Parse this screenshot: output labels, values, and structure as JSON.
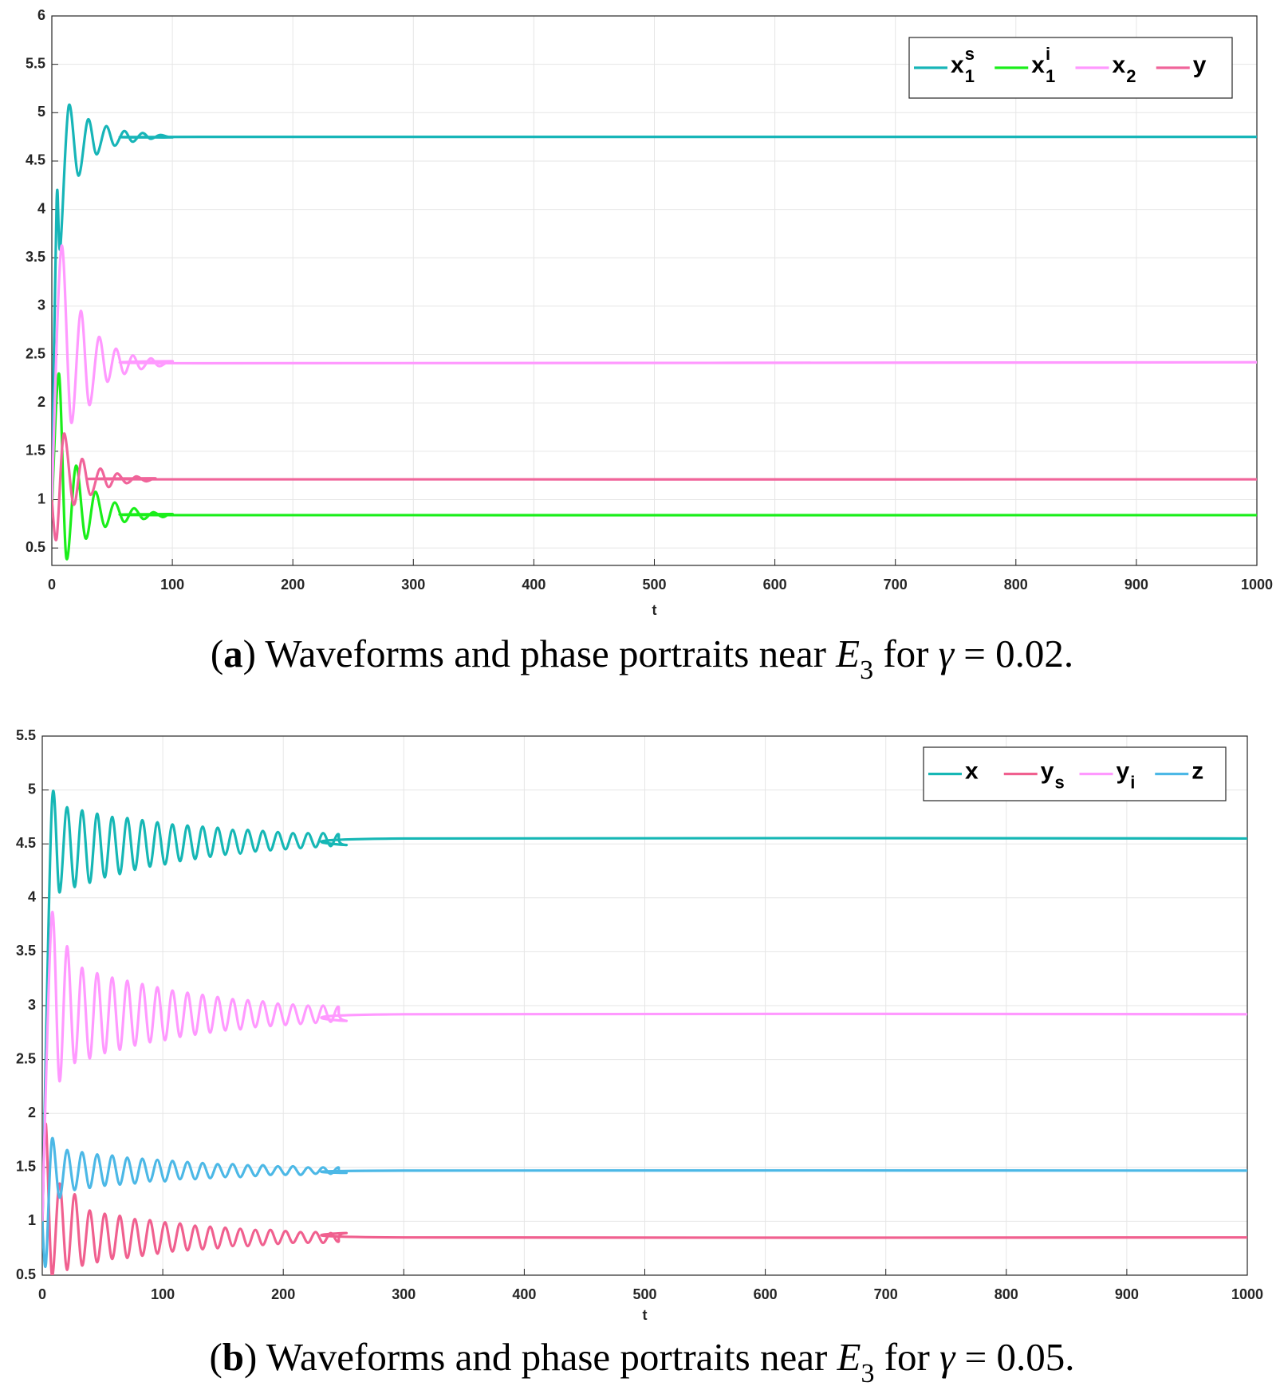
{
  "chart_data": [
    {
      "type": "line",
      "xlabel": "t",
      "caption": [
        "(",
        "a",
        ") Waveforms and phase portraits near ",
        "E",
        "3",
        " for ",
        "γ",
        " = 0.02."
      ],
      "caption_styles": [
        "normal",
        "bold",
        "normal",
        "italic",
        "sub",
        "normal",
        "italic",
        "normal"
      ],
      "xlim": [
        0,
        1000
      ],
      "xticks": [
        0,
        100,
        200,
        300,
        400,
        500,
        600,
        700,
        800,
        900,
        1000
      ],
      "ylim": [
        0.32,
        6
      ],
      "yticks": [
        0.5,
        1,
        1.5,
        2,
        2.5,
        3,
        3.5,
        4,
        4.5,
        5,
        5.5,
        6
      ],
      "grid": true,
      "legend": "upper-right",
      "series": [
        {
          "name": "x",
          "sup": "s",
          "sub": "1",
          "color": "#17b5b8",
          "x": [
            0,
            4,
            7,
            14,
            22,
            30,
            37,
            45,
            52,
            60,
            67,
            75,
            82,
            90,
            100,
            130,
            1000
          ],
          "values": [
            1,
            4.1,
            3.6,
            5.07,
            4.35,
            4.93,
            4.57,
            4.86,
            4.66,
            4.81,
            4.7,
            4.79,
            4.73,
            4.77,
            4.745,
            4.75,
            4.75
          ]
        },
        {
          "name": "x",
          "sup": "i",
          "sub": "1",
          "color": "#1aee1a",
          "x": [
            0,
            6,
            12,
            20,
            28,
            36,
            44,
            52,
            60,
            68,
            76,
            84,
            92,
            100,
            130,
            1000
          ],
          "values": [
            0.9,
            2.3,
            0.4,
            1.35,
            0.6,
            1.08,
            0.72,
            0.97,
            0.77,
            0.91,
            0.8,
            0.87,
            0.82,
            0.85,
            0.84,
            0.84
          ]
        },
        {
          "name": "x",
          "sub": "2",
          "color": "#ff99ff",
          "x": [
            0,
            8,
            16,
            24,
            31,
            39,
            46,
            53,
            60,
            67,
            74,
            82,
            89,
            100,
            130,
            1000
          ],
          "values": [
            1,
            3.62,
            1.8,
            2.95,
            1.98,
            2.68,
            2.22,
            2.56,
            2.3,
            2.49,
            2.35,
            2.46,
            2.38,
            2.43,
            2.41,
            2.42
          ]
        },
        {
          "name": "y",
          "color": "#f0649a",
          "x": [
            0,
            4,
            10,
            18,
            25,
            32,
            40,
            47,
            54,
            62,
            70,
            78,
            86,
            100,
            1000
          ],
          "values": [
            1,
            0.6,
            1.68,
            0.95,
            1.42,
            1.05,
            1.32,
            1.13,
            1.27,
            1.17,
            1.24,
            1.19,
            1.22,
            1.21,
            1.21
          ]
        }
      ]
    },
    {
      "type": "line",
      "xlabel": "t",
      "caption": [
        "(",
        "b",
        ") Waveforms and phase portraits near ",
        "E",
        "3",
        " for ",
        "γ",
        " = 0.05."
      ],
      "caption_styles": [
        "normal",
        "bold",
        "normal",
        "italic",
        "sub",
        "normal",
        "italic",
        "normal"
      ],
      "xlim": [
        0,
        1000
      ],
      "xticks": [
        0,
        100,
        200,
        300,
        400,
        500,
        600,
        700,
        800,
        900,
        1000
      ],
      "ylim": [
        0.5,
        5.5
      ],
      "yticks": [
        0.5,
        1,
        1.5,
        2,
        2.5,
        3,
        3.5,
        4,
        4.5,
        5,
        5.5
      ],
      "grid": true,
      "legend": "upper-right",
      "series": [
        {
          "name": "x",
          "color": "#16b7b5",
          "x": [
            0,
            8,
            14.3,
            20.5,
            26.8,
            33,
            39.3,
            45.5,
            51.8,
            58,
            64.3,
            70.5,
            76.8,
            83,
            89.3,
            95.5,
            101.8,
            108,
            114.3,
            120.5,
            126.8,
            133,
            139.3,
            145.5,
            151.8,
            158,
            164.3,
            170.5,
            176.8,
            183,
            189.3,
            195.5,
            201.8,
            208,
            214.3,
            220.5,
            226.8,
            233,
            239.3,
            245.5,
            251.8,
            300,
            1000
          ],
          "values": [
            0.9,
            4.87,
            4.05,
            4.84,
            4.1,
            4.81,
            4.14,
            4.78,
            4.19,
            4.75,
            4.22,
            4.74,
            4.26,
            4.72,
            4.29,
            4.7,
            4.31,
            4.68,
            4.34,
            4.67,
            4.36,
            4.66,
            4.38,
            4.65,
            4.4,
            4.63,
            4.41,
            4.63,
            4.43,
            4.62,
            4.44,
            4.61,
            4.45,
            4.6,
            4.46,
            4.6,
            4.47,
            4.6,
            4.48,
            4.59,
            4.49,
            4.55,
            4.55
          ]
        },
        {
          "name": "y",
          "sub": "s",
          "color": "#f0608f",
          "x": [
            0,
            3,
            8,
            14.3,
            20.5,
            26.8,
            33,
            39.3,
            45.5,
            51.8,
            58,
            64.3,
            70.5,
            76.8,
            83,
            89.3,
            95.5,
            101.8,
            108,
            114.3,
            120.5,
            126.8,
            133,
            139.3,
            145.5,
            151.8,
            158,
            164.3,
            170.5,
            176.8,
            183,
            189.3,
            195.5,
            201.8,
            208,
            214.3,
            220.5,
            226.8,
            233,
            239.3,
            245.5,
            251.8,
            300,
            1000
          ],
          "values": [
            1,
            1.9,
            0.5,
            1.35,
            0.55,
            1.25,
            0.59,
            1.1,
            0.62,
            1.07,
            0.65,
            1.05,
            0.66,
            1.02,
            0.68,
            1.01,
            0.7,
            0.99,
            0.72,
            0.98,
            0.73,
            0.96,
            0.74,
            0.95,
            0.75,
            0.94,
            0.77,
            0.93,
            0.77,
            0.92,
            0.78,
            0.92,
            0.79,
            0.91,
            0.8,
            0.9,
            0.8,
            0.9,
            0.8,
            0.89,
            0.81,
            0.89,
            0.85,
            0.85
          ]
        },
        {
          "name": "y",
          "sub": "i",
          "color": "#ff99ff",
          "x": [
            0,
            8,
            14.3,
            20.5,
            26.8,
            33,
            39.3,
            45.5,
            51.8,
            58,
            64.3,
            70.5,
            76.8,
            83,
            89.3,
            95.5,
            101.8,
            108,
            114.3,
            120.5,
            126.8,
            133,
            139.3,
            145.5,
            151.8,
            158,
            164.3,
            170.5,
            176.8,
            183,
            189.3,
            195.5,
            201.8,
            208,
            214.3,
            220.5,
            226.8,
            233,
            239.3,
            245.5,
            251.8,
            300,
            1000
          ],
          "values": [
            1,
            3.85,
            2.3,
            3.55,
            2.47,
            3.35,
            2.51,
            3.3,
            2.56,
            3.26,
            2.59,
            3.23,
            2.63,
            3.2,
            2.66,
            3.17,
            2.68,
            3.14,
            2.71,
            3.12,
            2.73,
            3.1,
            2.75,
            3.08,
            2.77,
            3.06,
            2.78,
            3.05,
            2.8,
            3.04,
            2.81,
            3.02,
            2.82,
            3.01,
            2.83,
            3,
            2.84,
            3,
            2.85,
            2.99,
            2.86,
            2.92,
            2.92
          ]
        },
        {
          "name": "z",
          "color": "#4cb8e6",
          "x": [
            0,
            3,
            8,
            14.3,
            20.5,
            26.8,
            33,
            39.3,
            45.5,
            51.8,
            58,
            64.3,
            70.5,
            76.8,
            83,
            89.3,
            95.5,
            101.8,
            108,
            114.3,
            120.5,
            126.8,
            133,
            139.3,
            145.5,
            151.8,
            158,
            164.3,
            170.5,
            176.8,
            183,
            189.3,
            195.5,
            201.8,
            208,
            214.3,
            220.5,
            226.8,
            233,
            239.3,
            245.5,
            251.8,
            300,
            1000
          ],
          "values": [
            1,
            0.6,
            1.76,
            1.22,
            1.66,
            1.29,
            1.64,
            1.31,
            1.62,
            1.33,
            1.61,
            1.34,
            1.59,
            1.35,
            1.58,
            1.37,
            1.57,
            1.37,
            1.56,
            1.39,
            1.55,
            1.39,
            1.54,
            1.4,
            1.53,
            1.41,
            1.53,
            1.41,
            1.52,
            1.42,
            1.52,
            1.43,
            1.51,
            1.43,
            1.51,
            1.43,
            1.5,
            1.44,
            1.5,
            1.44,
            1.5,
            1.45,
            1.47,
            1.47
          ]
        }
      ]
    }
  ]
}
